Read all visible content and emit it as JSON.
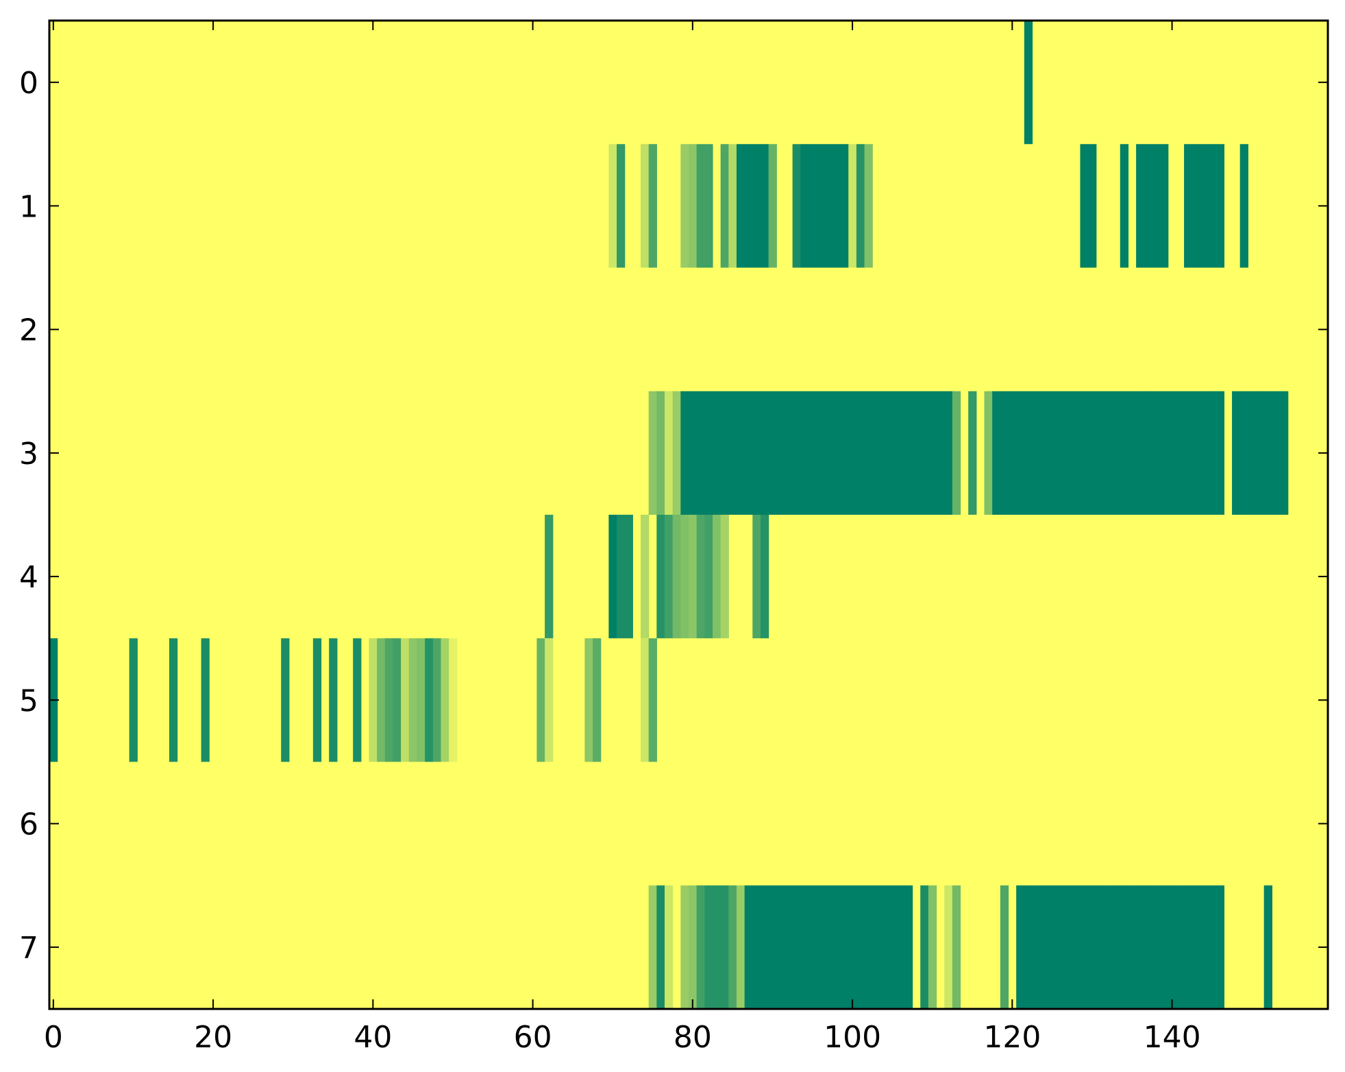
{
  "chart_data": {
    "type": "heatmap",
    "title": "",
    "xlabel": "",
    "ylabel": "",
    "xlim": [
      -0.5,
      159.5
    ],
    "ylim": [
      7.5,
      -0.5
    ],
    "x_ticks": [
      0,
      20,
      40,
      60,
      80,
      100,
      120,
      140
    ],
    "y_ticks": [
      0,
      1,
      2,
      3,
      4,
      5,
      6,
      7
    ],
    "grid": false,
    "legend": "none",
    "colormap": "summer_r",
    "background_value": 0,
    "colors": {
      "low": "#ffff66",
      "high": "#008066",
      "axis": "#000000"
    },
    "rows": [
      {
        "row": 0,
        "cells": [
          [
            122,
            1
          ]
        ]
      },
      {
        "row": 1,
        "cells": [
          [
            70,
            0.2
          ],
          [
            71,
            0.8
          ],
          [
            74,
            0.25
          ],
          [
            75,
            0.7
          ],
          [
            79,
            0.4
          ],
          [
            80,
            0.45
          ],
          [
            81,
            0.75
          ],
          [
            82,
            0.75
          ],
          [
            84,
            0.7
          ],
          [
            85,
            0.3
          ],
          [
            86,
            1
          ],
          [
            87,
            1
          ],
          [
            88,
            1
          ],
          [
            89,
            1
          ],
          [
            90,
            0.6
          ],
          [
            93,
            0.9
          ],
          [
            94,
            1
          ],
          [
            95,
            1
          ],
          [
            96,
            1
          ],
          [
            97,
            1
          ],
          [
            98,
            1
          ],
          [
            99,
            1
          ],
          [
            100,
            0.2
          ],
          [
            101,
            0.85
          ],
          [
            102,
            0.5
          ],
          [
            129,
            1
          ],
          [
            130,
            1
          ],
          [
            134,
            1
          ],
          [
            136,
            1
          ],
          [
            137,
            1
          ],
          [
            138,
            1
          ],
          [
            139,
            1
          ],
          [
            142,
            1
          ],
          [
            143,
            1
          ],
          [
            144,
            1
          ],
          [
            145,
            1
          ],
          [
            146,
            1
          ],
          [
            149,
            1
          ]
        ]
      },
      {
        "row": 3,
        "cells": [
          [
            75,
            0.45
          ],
          [
            76,
            0.55
          ],
          [
            77,
            0.2
          ],
          [
            78,
            0.4
          ],
          [
            79,
            1
          ],
          [
            80,
            1
          ],
          [
            81,
            1
          ],
          [
            82,
            1
          ],
          [
            83,
            1
          ],
          [
            84,
            1
          ],
          [
            85,
            1
          ],
          [
            86,
            1
          ],
          [
            87,
            1
          ],
          [
            88,
            1
          ],
          [
            89,
            1
          ],
          [
            90,
            1
          ],
          [
            91,
            1
          ],
          [
            92,
            1
          ],
          [
            93,
            1
          ],
          [
            94,
            1
          ],
          [
            95,
            1
          ],
          [
            96,
            1
          ],
          [
            97,
            1
          ],
          [
            98,
            1
          ],
          [
            99,
            1
          ],
          [
            100,
            1
          ],
          [
            101,
            1
          ],
          [
            102,
            1
          ],
          [
            103,
            1
          ],
          [
            104,
            1
          ],
          [
            105,
            1
          ],
          [
            106,
            1
          ],
          [
            107,
            1
          ],
          [
            108,
            1
          ],
          [
            109,
            1
          ],
          [
            110,
            1
          ],
          [
            111,
            1
          ],
          [
            112,
            1
          ],
          [
            113,
            0.6
          ],
          [
            115,
            0.8
          ],
          [
            117,
            0.5
          ],
          [
            118,
            1
          ],
          [
            119,
            1
          ],
          [
            120,
            1
          ],
          [
            121,
            1
          ],
          [
            122,
            1
          ],
          [
            123,
            1
          ],
          [
            124,
            1
          ],
          [
            125,
            1
          ],
          [
            126,
            1
          ],
          [
            127,
            1
          ],
          [
            128,
            1
          ],
          [
            129,
            1
          ],
          [
            130,
            1
          ],
          [
            131,
            1
          ],
          [
            132,
            1
          ],
          [
            133,
            1
          ],
          [
            134,
            1
          ],
          [
            135,
            1
          ],
          [
            136,
            1
          ],
          [
            137,
            1
          ],
          [
            138,
            1
          ],
          [
            139,
            1
          ],
          [
            140,
            1
          ],
          [
            141,
            1
          ],
          [
            142,
            1
          ],
          [
            143,
            1
          ],
          [
            144,
            1
          ],
          [
            145,
            1
          ],
          [
            146,
            1
          ],
          [
            148,
            1
          ],
          [
            149,
            1
          ],
          [
            150,
            1
          ],
          [
            151,
            1
          ],
          [
            152,
            1
          ],
          [
            153,
            1
          ],
          [
            154,
            1
          ]
        ]
      },
      {
        "row": 4,
        "cells": [
          [
            62,
            0.8
          ],
          [
            70,
            1
          ],
          [
            71,
            0.9
          ],
          [
            72,
            0.9
          ],
          [
            74,
            0.3
          ],
          [
            76,
            0.85
          ],
          [
            77,
            0.75
          ],
          [
            78,
            0.55
          ],
          [
            79,
            0.5
          ],
          [
            80,
            0.45
          ],
          [
            81,
            0.7
          ],
          [
            82,
            0.75
          ],
          [
            83,
            0.5
          ],
          [
            84,
            0.35
          ],
          [
            88,
            0.7
          ],
          [
            89,
            0.85
          ]
        ]
      },
      {
        "row": 5,
        "cells": [
          [
            0,
            1
          ],
          [
            10,
            0.9
          ],
          [
            15,
            0.9
          ],
          [
            19,
            0.9
          ],
          [
            29,
            0.9
          ],
          [
            33,
            0.9
          ],
          [
            35,
            0.9
          ],
          [
            38,
            0.9
          ],
          [
            40,
            0.25
          ],
          [
            41,
            0.55
          ],
          [
            42,
            0.7
          ],
          [
            43,
            0.75
          ],
          [
            44,
            0.25
          ],
          [
            45,
            0.45
          ],
          [
            46,
            0.5
          ],
          [
            47,
            0.85
          ],
          [
            48,
            0.7
          ],
          [
            49,
            0.35
          ],
          [
            50,
            0.1
          ],
          [
            61,
            0.6
          ],
          [
            62,
            0.2
          ],
          [
            67,
            0.45
          ],
          [
            68,
            0.65
          ],
          [
            74,
            0.2
          ],
          [
            75,
            0.65
          ]
        ]
      },
      {
        "row": 7,
        "cells": [
          [
            75,
            0.4
          ],
          [
            76,
            0.9
          ],
          [
            77,
            0.2
          ],
          [
            79,
            0.4
          ],
          [
            80,
            0.45
          ],
          [
            81,
            0.75
          ],
          [
            82,
            0.85
          ],
          [
            83,
            0.85
          ],
          [
            84,
            0.85
          ],
          [
            85,
            0.7
          ],
          [
            86,
            0.4
          ],
          [
            87,
            1
          ],
          [
            88,
            1
          ],
          [
            89,
            1
          ],
          [
            90,
            1
          ],
          [
            91,
            1
          ],
          [
            92,
            1
          ],
          [
            93,
            1
          ],
          [
            94,
            1
          ],
          [
            95,
            1
          ],
          [
            96,
            1
          ],
          [
            97,
            1
          ],
          [
            98,
            1
          ],
          [
            99,
            1
          ],
          [
            100,
            1
          ],
          [
            101,
            1
          ],
          [
            102,
            1
          ],
          [
            103,
            1
          ],
          [
            104,
            1
          ],
          [
            105,
            1
          ],
          [
            106,
            1
          ],
          [
            107,
            1
          ],
          [
            109,
            0.9
          ],
          [
            110,
            0.5
          ],
          [
            112,
            0.2
          ],
          [
            113,
            0.55
          ],
          [
            119,
            0.7
          ],
          [
            121,
            1
          ],
          [
            122,
            1
          ],
          [
            123,
            1
          ],
          [
            124,
            1
          ],
          [
            125,
            1
          ],
          [
            126,
            1
          ],
          [
            127,
            1
          ],
          [
            128,
            1
          ],
          [
            129,
            1
          ],
          [
            130,
            1
          ],
          [
            131,
            1
          ],
          [
            132,
            1
          ],
          [
            133,
            1
          ],
          [
            134,
            1
          ],
          [
            135,
            1
          ],
          [
            136,
            1
          ],
          [
            137,
            1
          ],
          [
            138,
            1
          ],
          [
            139,
            1
          ],
          [
            140,
            1
          ],
          [
            141,
            1
          ],
          [
            142,
            1
          ],
          [
            143,
            1
          ],
          [
            144,
            1
          ],
          [
            145,
            1
          ],
          [
            146,
            1
          ],
          [
            152,
            1
          ]
        ]
      }
    ]
  }
}
